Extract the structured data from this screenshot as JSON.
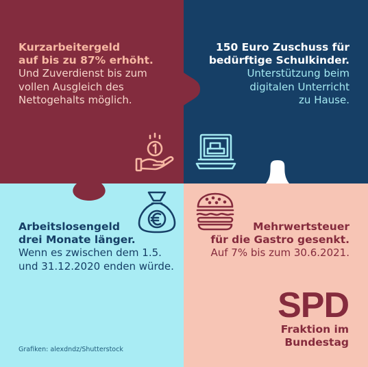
{
  "colors": {
    "top_left": "#832c3e",
    "top_right": "#163f66",
    "bottom_left": "#a9ecf4",
    "bottom_right": "#f7c5b5",
    "accent_peach": "#f7b8a3",
    "accent_cyan": "#a5eaf2",
    "accent_wine": "#852b3d",
    "accent_navy": "#163f66"
  },
  "panels": {
    "top_left": {
      "heading_line1": "Kurzarbeitergeld",
      "heading_line2": "auf bis zu 87% erhöht.",
      "body_line1": "Und Zuverdienst bis zum",
      "body_line2": "vollen Ausgleich des",
      "body_line3": "Nettogehalts möglich.",
      "icon": "hand-coin-icon"
    },
    "top_right": {
      "heading_line1": "150 Euro Zuschuss für",
      "heading_line2": "bedürftige Schulkinder.",
      "body_line1": "Unterstützung beim",
      "body_line2": "digitalen Unterricht",
      "body_line3": "zu Hause.",
      "icon": "laptop-icon"
    },
    "bottom_left": {
      "heading_line1": "Arbeitslosengeld",
      "heading_line2": "drei Monate länger.",
      "body_line1": "Wenn es zwischen dem 1.5.",
      "body_line2": "und 31.12.2020 enden würde.",
      "icon": "euro-money-bag-icon"
    },
    "bottom_right": {
      "heading_line1": "Mehrwertsteuer",
      "heading_line2": "für die Gastro gesenkt.",
      "body_line1": "Auf 7% bis zum 30.6.2021.",
      "icon": "burger-icon"
    }
  },
  "logo": {
    "mark": "SPD",
    "line1": "Fraktion im",
    "line2": "Bundestag"
  },
  "credit": "Grafiken: alexdndz/Shutterstock"
}
